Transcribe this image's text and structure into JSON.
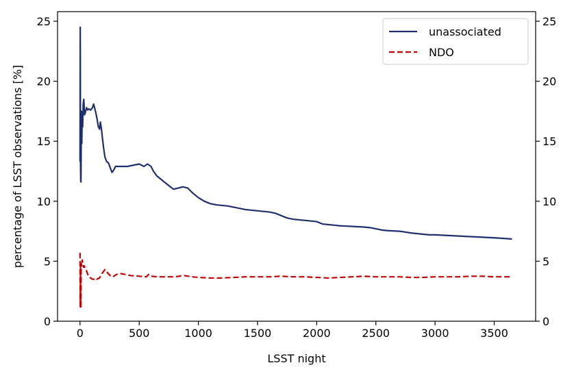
{
  "chart_data": {
    "type": "line",
    "title": "",
    "xlabel": "LSST night",
    "ylabel": "percentage of LSST observations [%]",
    "xlim": [
      -190,
      3850
    ],
    "ylim": [
      0,
      25.8
    ],
    "xticks": [
      0,
      500,
      1000,
      1500,
      2000,
      2500,
      3000,
      3500
    ],
    "yticks": [
      0,
      5,
      10,
      15,
      20,
      25
    ],
    "secondary_yaxis": true,
    "grid": false,
    "legend_position": "top-right",
    "series": [
      {
        "name": "unassociated",
        "color": "#1f2f6e",
        "dash": "solid",
        "points": [
          [
            0,
            13.3
          ],
          [
            2,
            24.5
          ],
          [
            4,
            13.2
          ],
          [
            6,
            11.7
          ],
          [
            8,
            11.6
          ],
          [
            10,
            15.0
          ],
          [
            12,
            17.5
          ],
          [
            15,
            14.8
          ],
          [
            18,
            17.0
          ],
          [
            22,
            16.2
          ],
          [
            27,
            18.1
          ],
          [
            32,
            18.5
          ],
          [
            38,
            17.2
          ],
          [
            45,
            17.4
          ],
          [
            55,
            17.8
          ],
          [
            65,
            17.6
          ],
          [
            75,
            17.7
          ],
          [
            90,
            17.6
          ],
          [
            105,
            17.8
          ],
          [
            115,
            18.1
          ],
          [
            125,
            17.7
          ],
          [
            135,
            17.3
          ],
          [
            145,
            16.8
          ],
          [
            155,
            16.2
          ],
          [
            165,
            16.0
          ],
          [
            172,
            16.6
          ],
          [
            180,
            16.1
          ],
          [
            190,
            15.2
          ],
          [
            200,
            14.4
          ],
          [
            210,
            13.7
          ],
          [
            225,
            13.3
          ],
          [
            240,
            13.2
          ],
          [
            255,
            12.8
          ],
          [
            270,
            12.4
          ],
          [
            285,
            12.6
          ],
          [
            300,
            12.9
          ],
          [
            330,
            12.9
          ],
          [
            360,
            12.9
          ],
          [
            400,
            12.9
          ],
          [
            450,
            13.0
          ],
          [
            500,
            13.1
          ],
          [
            540,
            12.9
          ],
          [
            570,
            13.1
          ],
          [
            600,
            12.9
          ],
          [
            620,
            12.5
          ],
          [
            650,
            12.1
          ],
          [
            700,
            11.7
          ],
          [
            750,
            11.3
          ],
          [
            790,
            11.0
          ],
          [
            830,
            11.1
          ],
          [
            870,
            11.2
          ],
          [
            910,
            11.1
          ],
          [
            950,
            10.7
          ],
          [
            1000,
            10.3
          ],
          [
            1050,
            10.0
          ],
          [
            1100,
            9.8
          ],
          [
            1150,
            9.7
          ],
          [
            1200,
            9.65
          ],
          [
            1250,
            9.6
          ],
          [
            1300,
            9.5
          ],
          [
            1350,
            9.4
          ],
          [
            1400,
            9.3
          ],
          [
            1450,
            9.25
          ],
          [
            1500,
            9.2
          ],
          [
            1550,
            9.15
          ],
          [
            1600,
            9.1
          ],
          [
            1650,
            9.0
          ],
          [
            1700,
            8.8
          ],
          [
            1750,
            8.6
          ],
          [
            1800,
            8.5
          ],
          [
            1850,
            8.45
          ],
          [
            1900,
            8.4
          ],
          [
            2000,
            8.3
          ],
          [
            2050,
            8.1
          ],
          [
            2100,
            8.05
          ],
          [
            2150,
            8.0
          ],
          [
            2200,
            7.95
          ],
          [
            2300,
            7.9
          ],
          [
            2400,
            7.85
          ],
          [
            2450,
            7.8
          ],
          [
            2500,
            7.7
          ],
          [
            2550,
            7.6
          ],
          [
            2600,
            7.55
          ],
          [
            2700,
            7.5
          ],
          [
            2800,
            7.35
          ],
          [
            2900,
            7.25
          ],
          [
            2950,
            7.2
          ],
          [
            3000,
            7.2
          ],
          [
            3100,
            7.15
          ],
          [
            3200,
            7.1
          ],
          [
            3300,
            7.05
          ],
          [
            3400,
            7.0
          ],
          [
            3500,
            6.95
          ],
          [
            3580,
            6.9
          ],
          [
            3650,
            6.85
          ]
        ]
      },
      {
        "name": "NDO",
        "color": "#c00000",
        "dash": "dashed",
        "points": [
          [
            0,
            5.7
          ],
          [
            2,
            1.2
          ],
          [
            4,
            4.7
          ],
          [
            6,
            1.1
          ],
          [
            8,
            3.2
          ],
          [
            10,
            4.8
          ],
          [
            14,
            4.6
          ],
          [
            18,
            5.1
          ],
          [
            24,
            4.9
          ],
          [
            30,
            4.5
          ],
          [
            36,
            4.6
          ],
          [
            45,
            4.3
          ],
          [
            55,
            4.2
          ],
          [
            65,
            3.9
          ],
          [
            75,
            3.7
          ],
          [
            90,
            3.6
          ],
          [
            105,
            3.5
          ],
          [
            120,
            3.5
          ],
          [
            135,
            3.4
          ],
          [
            150,
            3.55
          ],
          [
            165,
            3.6
          ],
          [
            180,
            3.9
          ],
          [
            195,
            4.1
          ],
          [
            210,
            4.3
          ],
          [
            225,
            4.1
          ],
          [
            245,
            3.9
          ],
          [
            265,
            3.7
          ],
          [
            285,
            3.75
          ],
          [
            300,
            3.85
          ],
          [
            330,
            4.0
          ],
          [
            380,
            3.9
          ],
          [
            430,
            3.8
          ],
          [
            500,
            3.75
          ],
          [
            560,
            3.7
          ],
          [
            580,
            3.9
          ],
          [
            600,
            3.75
          ],
          [
            650,
            3.7
          ],
          [
            700,
            3.7
          ],
          [
            800,
            3.7
          ],
          [
            880,
            3.8
          ],
          [
            950,
            3.7
          ],
          [
            1000,
            3.65
          ],
          [
            1100,
            3.6
          ],
          [
            1200,
            3.6
          ],
          [
            1300,
            3.65
          ],
          [
            1400,
            3.7
          ],
          [
            1500,
            3.7
          ],
          [
            1600,
            3.7
          ],
          [
            1700,
            3.75
          ],
          [
            1800,
            3.7
          ],
          [
            1900,
            3.7
          ],
          [
            2000,
            3.65
          ],
          [
            2100,
            3.6
          ],
          [
            2200,
            3.65
          ],
          [
            2300,
            3.7
          ],
          [
            2400,
            3.75
          ],
          [
            2500,
            3.7
          ],
          [
            2600,
            3.7
          ],
          [
            2700,
            3.7
          ],
          [
            2800,
            3.65
          ],
          [
            2900,
            3.65
          ],
          [
            3000,
            3.7
          ],
          [
            3100,
            3.7
          ],
          [
            3200,
            3.7
          ],
          [
            3300,
            3.75
          ],
          [
            3400,
            3.75
          ],
          [
            3500,
            3.7
          ],
          [
            3600,
            3.7
          ],
          [
            3650,
            3.7
          ]
        ]
      }
    ]
  }
}
